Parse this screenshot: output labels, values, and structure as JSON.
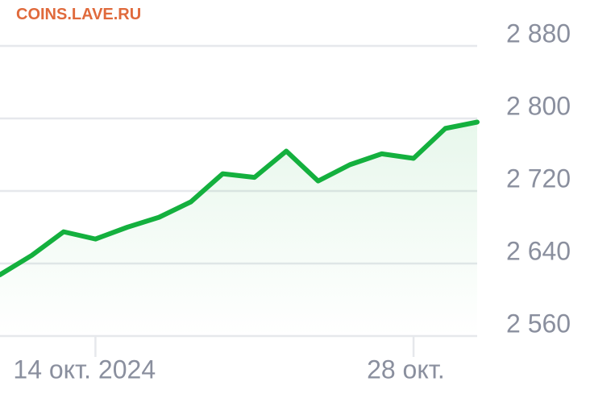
{
  "watermark": "COINS.LAVE.RU",
  "chart_data": {
    "type": "line",
    "categories": [
      null,
      null,
      null,
      "14 окт. 2024",
      null,
      null,
      null,
      null,
      null,
      null,
      null,
      null,
      null,
      "28 окт.",
      null,
      null
    ],
    "series": [
      {
        "color": "#14b03e",
        "values": [
          2627.6,
          2649,
          2675,
          2667,
          2680,
          2691,
          2708,
          2739,
          2735,
          2764,
          2731,
          2749,
          2761,
          2756,
          2789,
          2796
        ]
      }
    ],
    "ylim": [
      2560,
      2880
    ],
    "yticks": [
      {
        "value": 2560,
        "label": "2 560"
      },
      {
        "value": 2640,
        "label": "2 640"
      },
      {
        "value": 2720,
        "label": "2 720"
      },
      {
        "value": 2800,
        "label": "2 800"
      },
      {
        "value": 2880,
        "label": "2 880"
      }
    ],
    "grid": true
  }
}
